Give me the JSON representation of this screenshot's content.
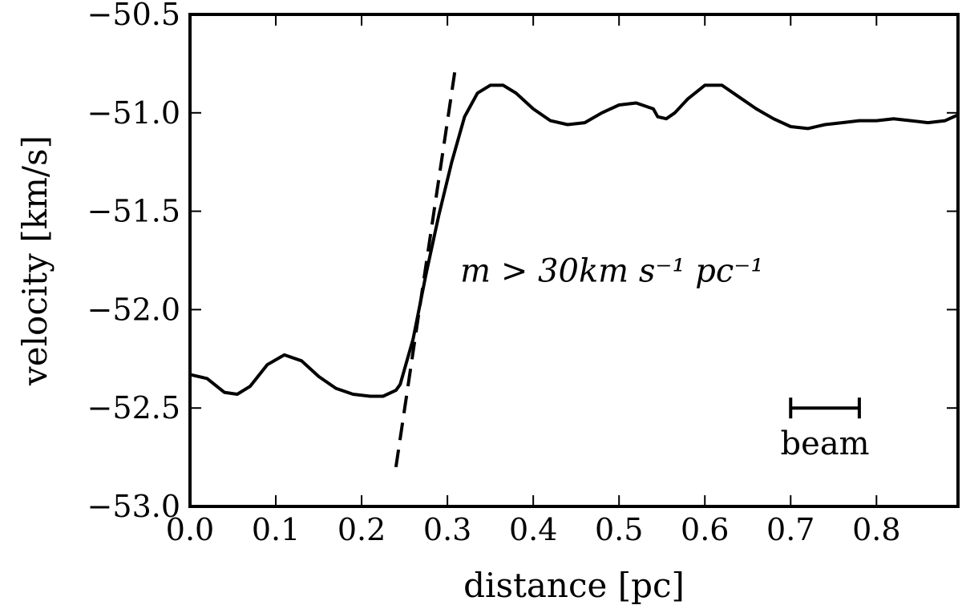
{
  "chart_data": {
    "type": "line",
    "xlabel": "distance [pc]",
    "ylabel": "velocity [km/s]",
    "xlim": [
      0.0,
      0.895
    ],
    "ylim": [
      -53.0,
      -50.5
    ],
    "grid": false,
    "xticks": [
      0.0,
      0.1,
      0.2,
      0.3,
      0.4,
      0.5,
      0.6,
      0.7,
      0.8
    ],
    "xtick_labels": [
      "0.0",
      "0.1",
      "0.2",
      "0.3",
      "0.4",
      "0.5",
      "0.6",
      "0.7",
      "0.8"
    ],
    "yticks": [
      -53.0,
      -52.5,
      -52.0,
      -51.5,
      -51.0,
      -50.5
    ],
    "ytick_labels": [
      "−53.0",
      "−52.5",
      "−52.0",
      "−51.5",
      "−51.0",
      "−50.5"
    ],
    "series": [
      {
        "style": "solid",
        "x": [
          0.0,
          0.02,
          0.04,
          0.055,
          0.07,
          0.09,
          0.11,
          0.13,
          0.15,
          0.17,
          0.19,
          0.21,
          0.225,
          0.24,
          0.245,
          0.26,
          0.275,
          0.29,
          0.305,
          0.32,
          0.335,
          0.35,
          0.365,
          0.38,
          0.4,
          0.42,
          0.44,
          0.46,
          0.48,
          0.5,
          0.52,
          0.54,
          0.545,
          0.555,
          0.565,
          0.58,
          0.6,
          0.62,
          0.64,
          0.66,
          0.68,
          0.7,
          0.72,
          0.74,
          0.76,
          0.78,
          0.8,
          0.82,
          0.84,
          0.86,
          0.88,
          0.895
        ],
        "y": [
          -52.33,
          -52.35,
          -52.42,
          -52.43,
          -52.39,
          -52.28,
          -52.23,
          -52.26,
          -52.34,
          -52.4,
          -52.43,
          -52.44,
          -52.44,
          -52.41,
          -52.38,
          -52.15,
          -51.82,
          -51.52,
          -51.25,
          -51.02,
          -50.9,
          -50.86,
          -50.86,
          -50.9,
          -50.98,
          -51.04,
          -51.06,
          -51.05,
          -51.0,
          -50.96,
          -50.95,
          -50.98,
          -51.02,
          -51.03,
          -51.0,
          -50.93,
          -50.86,
          -50.86,
          -50.92,
          -50.98,
          -51.03,
          -51.07,
          -51.08,
          -51.06,
          -51.05,
          -51.04,
          -51.04,
          -51.03,
          -51.04,
          -51.05,
          -51.04,
          -51.01
        ]
      }
    ],
    "fit_line": {
      "style": "dashed",
      "x": [
        0.24,
        0.31
      ],
      "y": [
        -52.8,
        -50.75
      ]
    },
    "annotations": [
      {
        "text": "m > 30km s⁻¹ pc⁻¹",
        "x": 0.315,
        "y": -51.8
      }
    ],
    "beam": {
      "label": "beam",
      "x_start": 0.7,
      "x_end": 0.78,
      "y": -52.5
    }
  },
  "colors": {
    "line": "#000000",
    "background": "#ffffff"
  }
}
